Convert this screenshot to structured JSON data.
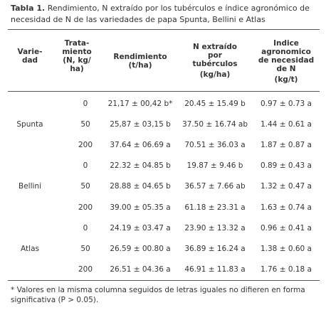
{
  "caption": {
    "label": "Tabla 1.",
    "text": " Rendimiento, N extraído por los tubérculos e índice agronómico de necesidad de N de las variedades de papa Spunta, Bellini e Atlas"
  },
  "headers": {
    "variedad": [
      "Varie-",
      "dad"
    ],
    "tratamiento": [
      "Trata-",
      "miento",
      "(N, kg/",
      "ha)"
    ],
    "rendimiento": [
      "Rendimiento",
      "(t/ha)"
    ],
    "n_extraido": [
      "N extraído",
      "por",
      "tubérculos",
      "(kg/ha)"
    ],
    "indice": [
      "Indice",
      "agronomico",
      "de necesidad",
      "de N",
      "(kg/t)"
    ]
  },
  "rows": [
    {
      "variedad": "Spunta",
      "trat": "0",
      "rend": "21,17 ± 00,42 b*",
      "n": "20.45 ± 15.49 b",
      "ind": "0.97 ± 0.73 a"
    },
    {
      "variedad": "",
      "trat": "50",
      "rend": "25,87 ± 03,15 b",
      "n": "37.50 ± 16.74 ab",
      "ind": "1.44 ± 0.61 a"
    },
    {
      "variedad": "",
      "trat": "200",
      "rend": "37.64 ± 06.69 a",
      "n": "70.51 ± 36.03 a",
      "ind": "1.87 ± 0.87 a"
    },
    {
      "variedad": "Bellini",
      "trat": "0",
      "rend": "22.32 ± 04.85 b",
      "n": "19.87 ± 9.46 b",
      "ind": "0.89 ± 0.43 a"
    },
    {
      "variedad": "",
      "trat": "50",
      "rend": "28.88 ± 04.65 b",
      "n": "36.57 ± 7.66 ab",
      "ind": "1.32 ± 0.47 a"
    },
    {
      "variedad": "",
      "trat": "200",
      "rend": "39.00 ± 05.35 a",
      "n": "61.18 ± 23.31 a",
      "ind": "1.63 ± 0.74 a"
    },
    {
      "variedad": "Atlas",
      "trat": "0",
      "rend": "24.19 ± 03.47 a",
      "n": "23.90 ± 13.32 a",
      "ind": "0.96 ± 0.41 a"
    },
    {
      "variedad": "",
      "trat": "50",
      "rend": "26.59 ± 00.80 a",
      "n": "36.89 ± 16.24 a",
      "ind": "1.38 ± 0.60 a"
    },
    {
      "variedad": "",
      "trat": "200",
      "rend": "26.51 ± 04.36 a",
      "n": "46.91 ± 11.83 a",
      "ind": "1.76 ± 0.18 a"
    }
  ],
  "footnote": "* Valores en la misma columna seguidos de letras iguales no difieren en forma significativa (P > 0.05)."
}
